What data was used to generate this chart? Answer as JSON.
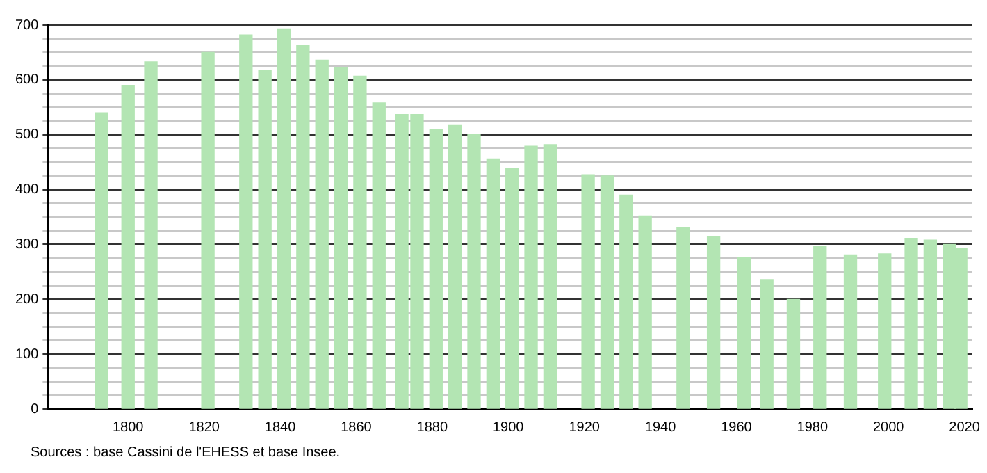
{
  "chart_data": {
    "type": "bar",
    "x": [
      1793,
      1800,
      1806,
      1821,
      1831,
      1836,
      1841,
      1846,
      1851,
      1856,
      1861,
      1866,
      1872,
      1876,
      1881,
      1886,
      1891,
      1896,
      1901,
      1906,
      1911,
      1921,
      1926,
      1931,
      1936,
      1946,
      1954,
      1962,
      1968,
      1975,
      1982,
      1990,
      1999,
      2006,
      2011,
      2016,
      2019
    ],
    "values": [
      540,
      590,
      633,
      650,
      682,
      617,
      693,
      663,
      636,
      623,
      607,
      558,
      537,
      537,
      510,
      518,
      500,
      456,
      438,
      479,
      482,
      427,
      425,
      390,
      352,
      330,
      315,
      277,
      236,
      200,
      297,
      281,
      283,
      311,
      308,
      300,
      292
    ],
    "color": "#b3e5b3",
    "xlim": [
      1779,
      2022
    ],
    "xticks": [
      1800,
      1820,
      1840,
      1860,
      1880,
      1900,
      1920,
      1940,
      1960,
      1980,
      2000,
      2020
    ],
    "ylim": [
      0,
      700
    ],
    "yticks": [
      0,
      {
        "value": 25,
        "label": null
      },
      {
        "value": 50,
        "label": null
      },
      {
        "value": 75,
        "label": null
      },
      100,
      {
        "value": 125,
        "label": null
      },
      {
        "value": 150,
        "label": null
      },
      {
        "value": 175,
        "label": null
      },
      200,
      {
        "value": 225,
        "label": null
      },
      {
        "value": 250,
        "label": null
      },
      {
        "value": 275,
        "label": null
      },
      300,
      {
        "value": 325,
        "label": null
      },
      {
        "value": 350,
        "label": null
      },
      {
        "value": 375,
        "label": null
      },
      400,
      {
        "value": 425,
        "label": null
      },
      {
        "value": 450,
        "label": null
      },
      {
        "value": 475,
        "label": null
      },
      500,
      {
        "value": 525,
        "label": null
      },
      {
        "value": 550,
        "label": null
      },
      {
        "value": 575,
        "label": null
      },
      600,
      {
        "value": 625,
        "label": null
      },
      {
        "value": 650,
        "label": null
      },
      {
        "value": 675,
        "label": null
      },
      700
    ],
    "grid": "y",
    "annotations": [
      "Sources : base Cassini de l'EHESS et base Insee."
    ]
  }
}
